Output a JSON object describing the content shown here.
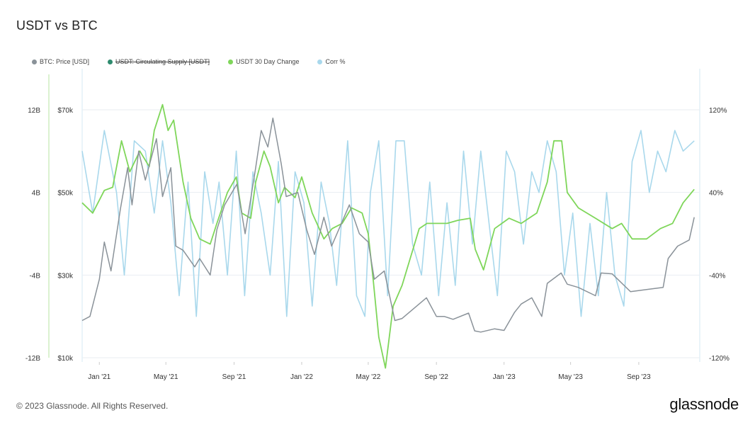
{
  "page": {
    "title": "USDT vs BTC",
    "copyright": "© 2023 Glassnode. All Rights Reserved.",
    "brand": "glassnode"
  },
  "legend": [
    {
      "label": "BTC: Price [USD]",
      "color": "#8a9299",
      "struck": false
    },
    {
      "label": "USDT: Circulating Supply [USDT]",
      "color": "#2e8b6e",
      "struck": true
    },
    {
      "label": "USDT 30 Day Change",
      "color": "#7fd65a",
      "struck": false
    },
    {
      "label": "Corr %",
      "color": "#a9d8ec",
      "struck": false
    }
  ],
  "chart_data": {
    "type": "line",
    "title": "USDT vs BTC",
    "x_ticks": [
      {
        "label": "Jan '21",
        "date": "2021-01-01"
      },
      {
        "label": "May '21",
        "date": "2021-05-01"
      },
      {
        "label": "Sep '21",
        "date": "2021-09-01"
      },
      {
        "label": "Jan '22",
        "date": "2022-01-01"
      },
      {
        "label": "May '22",
        "date": "2022-05-01"
      },
      {
        "label": "Sep '22",
        "date": "2022-09-01"
      },
      {
        "label": "Jan '23",
        "date": "2023-01-01"
      },
      {
        "label": "May '23",
        "date": "2023-05-01"
      },
      {
        "label": "Sep '23",
        "date": "2023-09-01"
      }
    ],
    "x_range": [
      "2020-12-01",
      "2023-12-20"
    ],
    "axes": {
      "usdt_change": {
        "ticks": [
          "12B",
          "4B",
          "-4B",
          "-12B"
        ],
        "values": [
          12,
          4,
          -4,
          -12
        ],
        "range": [
          -12,
          12
        ],
        "unit": "B"
      },
      "btc_price": {
        "ticks": [
          "$70k",
          "$50k",
          "$30k",
          "$10k"
        ],
        "values": [
          70000,
          50000,
          30000,
          10000
        ],
        "range": [
          10000,
          70000
        ]
      },
      "corr": {
        "ticks": [
          "120%",
          "40%",
          "-40%",
          "-120%"
        ],
        "values": [
          120,
          40,
          -40,
          -120
        ],
        "range": [
          -120,
          120
        ]
      }
    },
    "series": [
      {
        "name": "BTC: Price [USD]",
        "axis": "btc_price",
        "color": "#8a9299",
        "points": [
          [
            "2020-12-01",
            19000
          ],
          [
            "2020-12-15",
            20000
          ],
          [
            "2021-01-01",
            29000
          ],
          [
            "2021-01-10",
            38000
          ],
          [
            "2021-01-22",
            31000
          ],
          [
            "2021-02-08",
            46000
          ],
          [
            "2021-02-21",
            56000
          ],
          [
            "2021-03-01",
            47000
          ],
          [
            "2021-03-13",
            60000
          ],
          [
            "2021-03-25",
            53000
          ],
          [
            "2021-04-14",
            63000
          ],
          [
            "2021-04-25",
            49000
          ],
          [
            "2021-05-10",
            56000
          ],
          [
            "2021-05-19",
            37000
          ],
          [
            "2021-06-01",
            36000
          ],
          [
            "2021-06-22",
            32000
          ],
          [
            "2021-07-01",
            34000
          ],
          [
            "2021-07-20",
            30000
          ],
          [
            "2021-08-01",
            41000
          ],
          [
            "2021-08-15",
            47000
          ],
          [
            "2021-09-06",
            52000
          ],
          [
            "2021-09-21",
            40000
          ],
          [
            "2021-10-10",
            56000
          ],
          [
            "2021-10-20",
            65000
          ],
          [
            "2021-11-01",
            61000
          ],
          [
            "2021-11-10",
            68000
          ],
          [
            "2021-11-25",
            57000
          ],
          [
            "2021-12-04",
            49000
          ],
          [
            "2021-12-25",
            50000
          ],
          [
            "2022-01-10",
            41000
          ],
          [
            "2022-01-24",
            35000
          ],
          [
            "2022-02-10",
            44000
          ],
          [
            "2022-02-24",
            37000
          ],
          [
            "2022-03-28",
            47000
          ],
          [
            "2022-04-15",
            40000
          ],
          [
            "2022-05-01",
            38000
          ],
          [
            "2022-05-12",
            29000
          ],
          [
            "2022-05-30",
            31000
          ],
          [
            "2022-06-18",
            19000
          ],
          [
            "2022-07-01",
            19500
          ],
          [
            "2022-08-14",
            24500
          ],
          [
            "2022-09-01",
            20000
          ],
          [
            "2022-09-15",
            20000
          ],
          [
            "2022-10-01",
            19300
          ],
          [
            "2022-10-29",
            20800
          ],
          [
            "2022-11-09",
            16500
          ],
          [
            "2022-11-20",
            16200
          ],
          [
            "2022-12-15",
            17000
          ],
          [
            "2023-01-01",
            16600
          ],
          [
            "2023-01-20",
            21000
          ],
          [
            "2023-02-01",
            23000
          ],
          [
            "2023-02-20",
            24500
          ],
          [
            "2023-03-10",
            20000
          ],
          [
            "2023-03-20",
            28000
          ],
          [
            "2023-04-14",
            30500
          ],
          [
            "2023-04-25",
            27800
          ],
          [
            "2023-05-15",
            27000
          ],
          [
            "2023-06-15",
            25000
          ],
          [
            "2023-06-25",
            30500
          ],
          [
            "2023-07-15",
            30300
          ],
          [
            "2023-08-17",
            26000
          ],
          [
            "2023-09-15",
            26500
          ],
          [
            "2023-10-15",
            27000
          ],
          [
            "2023-10-24",
            34000
          ],
          [
            "2023-11-10",
            37000
          ],
          [
            "2023-12-01",
            38500
          ],
          [
            "2023-12-10",
            44000
          ]
        ]
      },
      {
        "name": "USDT 30 Day Change",
        "axis": "usdt_change",
        "color": "#7fd65a",
        "points": [
          [
            "2020-12-01",
            3.0
          ],
          [
            "2020-12-20",
            2.0
          ],
          [
            "2021-01-10",
            4.2
          ],
          [
            "2021-01-25",
            4.5
          ],
          [
            "2021-02-10",
            9.0
          ],
          [
            "2021-02-25",
            6.0
          ],
          [
            "2021-03-15",
            8.0
          ],
          [
            "2021-04-01",
            6.5
          ],
          [
            "2021-04-10",
            10.0
          ],
          [
            "2021-04-25",
            12.5
          ],
          [
            "2021-05-05",
            10.0
          ],
          [
            "2021-05-15",
            11.0
          ],
          [
            "2021-06-01",
            5.0
          ],
          [
            "2021-06-15",
            1.5
          ],
          [
            "2021-07-01",
            -0.5
          ],
          [
            "2021-07-20",
            -1.0
          ],
          [
            "2021-08-01",
            1.0
          ],
          [
            "2021-08-20",
            4.0
          ],
          [
            "2021-09-05",
            5.5
          ],
          [
            "2021-09-15",
            2.0
          ],
          [
            "2021-10-01",
            1.5
          ],
          [
            "2021-10-10",
            5.0
          ],
          [
            "2021-10-25",
            8.0
          ],
          [
            "2021-11-05",
            6.5
          ],
          [
            "2021-11-20",
            3.0
          ],
          [
            "2021-12-01",
            4.5
          ],
          [
            "2021-12-20",
            3.5
          ],
          [
            "2022-01-01",
            5.5
          ],
          [
            "2022-01-20",
            2.0
          ],
          [
            "2022-02-10",
            -0.5
          ],
          [
            "2022-02-25",
            0.5
          ],
          [
            "2022-03-15",
            1.0
          ],
          [
            "2022-04-01",
            2.5
          ],
          [
            "2022-04-20",
            2.0
          ],
          [
            "2022-05-01",
            0.0
          ],
          [
            "2022-05-10",
            -4.5
          ],
          [
            "2022-05-20",
            -10.0
          ],
          [
            "2022-06-01",
            -13.0
          ],
          [
            "2022-06-15",
            -7.0
          ],
          [
            "2022-07-01",
            -5.0
          ],
          [
            "2022-08-01",
            0.5
          ],
          [
            "2022-08-15",
            1.0
          ],
          [
            "2022-09-01",
            1.0
          ],
          [
            "2022-09-20",
            1.0
          ],
          [
            "2022-10-10",
            1.3
          ],
          [
            "2022-11-01",
            1.5
          ],
          [
            "2022-11-10",
            -1.5
          ],
          [
            "2022-11-25",
            -3.5
          ],
          [
            "2022-12-15",
            0.5
          ],
          [
            "2023-01-10",
            1.5
          ],
          [
            "2023-02-01",
            1.0
          ],
          [
            "2023-03-01",
            2.0
          ],
          [
            "2023-03-20",
            5.0
          ],
          [
            "2023-04-01",
            9.0
          ],
          [
            "2023-04-15",
            9.0
          ],
          [
            "2023-04-25",
            4.0
          ],
          [
            "2023-05-15",
            2.5
          ],
          [
            "2023-06-15",
            1.5
          ],
          [
            "2023-07-15",
            0.5
          ],
          [
            "2023-08-01",
            1.0
          ],
          [
            "2023-08-20",
            -0.5
          ],
          [
            "2023-09-15",
            -0.5
          ],
          [
            "2023-10-10",
            0.5
          ],
          [
            "2023-11-01",
            1.0
          ],
          [
            "2023-11-20",
            3.0
          ],
          [
            "2023-12-10",
            4.3
          ]
        ]
      },
      {
        "name": "Corr %",
        "axis": "corr",
        "color": "#a9d8ec",
        "points": [
          [
            "2020-12-01",
            80
          ],
          [
            "2020-12-20",
            20
          ],
          [
            "2021-01-10",
            100
          ],
          [
            "2021-02-01",
            40
          ],
          [
            "2021-02-15",
            -40
          ],
          [
            "2021-03-05",
            90
          ],
          [
            "2021-03-25",
            80
          ],
          [
            "2021-04-10",
            20
          ],
          [
            "2021-04-25",
            90
          ],
          [
            "2021-05-10",
            30
          ],
          [
            "2021-05-25",
            -60
          ],
          [
            "2021-06-10",
            50
          ],
          [
            "2021-06-25",
            -80
          ],
          [
            "2021-07-10",
            60
          ],
          [
            "2021-07-25",
            10
          ],
          [
            "2021-08-05",
            50
          ],
          [
            "2021-08-20",
            -40
          ],
          [
            "2021-09-05",
            80
          ],
          [
            "2021-09-20",
            -60
          ],
          [
            "2021-10-05",
            60
          ],
          [
            "2021-10-20",
            20
          ],
          [
            "2021-11-05",
            -40
          ],
          [
            "2021-11-20",
            70
          ],
          [
            "2021-12-05",
            -80
          ],
          [
            "2021-12-20",
            60
          ],
          [
            "2022-01-05",
            30
          ],
          [
            "2022-01-20",
            -70
          ],
          [
            "2022-02-05",
            50
          ],
          [
            "2022-02-20",
            10
          ],
          [
            "2022-03-05",
            -50
          ],
          [
            "2022-03-25",
            90
          ],
          [
            "2022-04-10",
            -60
          ],
          [
            "2022-04-25",
            -80
          ],
          [
            "2022-05-05",
            40
          ],
          [
            "2022-05-20",
            90
          ],
          [
            "2022-06-05",
            -60
          ],
          [
            "2022-06-20",
            90
          ],
          [
            "2022-07-05",
            90
          ],
          [
            "2022-07-20",
            -10
          ],
          [
            "2022-08-05",
            -40
          ],
          [
            "2022-08-20",
            50
          ],
          [
            "2022-09-05",
            -60
          ],
          [
            "2022-09-20",
            30
          ],
          [
            "2022-10-05",
            -50
          ],
          [
            "2022-10-20",
            80
          ],
          [
            "2022-11-05",
            -10
          ],
          [
            "2022-11-20",
            80
          ],
          [
            "2022-12-05",
            10
          ],
          [
            "2022-12-20",
            -60
          ],
          [
            "2023-01-05",
            80
          ],
          [
            "2023-01-20",
            60
          ],
          [
            "2023-02-05",
            -10
          ],
          [
            "2023-02-20",
            60
          ],
          [
            "2023-03-05",
            40
          ],
          [
            "2023-03-20",
            90
          ],
          [
            "2023-04-05",
            60
          ],
          [
            "2023-04-20",
            -40
          ],
          [
            "2023-05-05",
            20
          ],
          [
            "2023-05-20",
            -80
          ],
          [
            "2023-06-05",
            10
          ],
          [
            "2023-06-20",
            -60
          ],
          [
            "2023-07-05",
            40
          ],
          [
            "2023-07-20",
            -40
          ],
          [
            "2023-08-05",
            -70
          ],
          [
            "2023-08-20",
            70
          ],
          [
            "2023-09-05",
            100
          ],
          [
            "2023-09-20",
            40
          ],
          [
            "2023-10-05",
            80
          ],
          [
            "2023-10-20",
            60
          ],
          [
            "2023-11-05",
            100
          ],
          [
            "2023-11-20",
            80
          ],
          [
            "2023-12-10",
            90
          ]
        ]
      }
    ],
    "grid": true,
    "legend_position": "top-left"
  }
}
